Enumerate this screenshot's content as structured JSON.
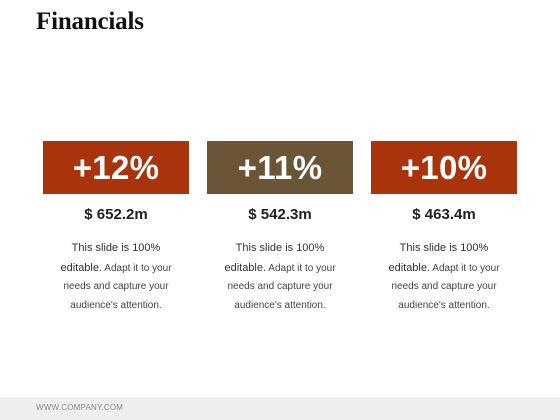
{
  "slide": {
    "title": "Financials"
  },
  "cards": [
    {
      "percent": "+12%",
      "amount": "$ 652.2m",
      "desc_lead": "This slide is 100%",
      "desc_strong": "editable.",
      "desc_rest": " Adapt it to your needs and capture your audience's attention.",
      "color": "#A9340B"
    },
    {
      "percent": "+11%",
      "amount": "$ 542.3m",
      "desc_lead": "This slide is 100%",
      "desc_strong": "editable.",
      "desc_rest": " Adapt it to your needs and capture your audience's attention.",
      "color": "#6A5636"
    },
    {
      "percent": "+10%",
      "amount": "$ 463.4m",
      "desc_lead": "This slide is 100%",
      "desc_strong": "editable.",
      "desc_rest": " Adapt it to your needs and capture your audience's attention.",
      "color": "#A9340B"
    }
  ],
  "footer": {
    "text": "WWW.COMPANY.COM"
  }
}
